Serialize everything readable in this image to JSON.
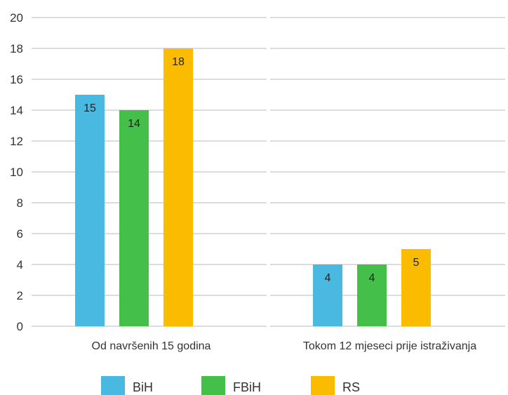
{
  "chart_data": {
    "type": "bar",
    "categories": [
      "Od navršenih 15 godina",
      "Tokom 12 mjeseci prije istraživanja"
    ],
    "series": [
      {
        "name": "BiH",
        "values": [
          15,
          4
        ],
        "color": "#4ab9e2"
      },
      {
        "name": "FBiH",
        "values": [
          14,
          4
        ],
        "color": "#44c04a"
      },
      {
        "name": "RS",
        "values": [
          18,
          5
        ],
        "color": "#fbbb00"
      }
    ],
    "ylim": [
      0,
      20
    ],
    "yticks": [
      0,
      2,
      4,
      6,
      8,
      10,
      12,
      14,
      16,
      18,
      20
    ],
    "grid": true,
    "legend": "bottom",
    "title": "",
    "xlabel": "",
    "ylabel": ""
  }
}
